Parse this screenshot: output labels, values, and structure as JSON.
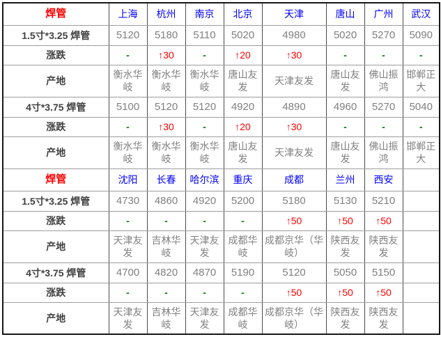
{
  "table": {
    "product_name": "焊管",
    "row_labels": {
      "size1": "1.5寸*3.25 焊管",
      "change": "涨跌",
      "origin": "产地",
      "size2": "4寸*3.75 焊管"
    },
    "sections": [
      {
        "corner_label": "焊管",
        "cities": [
          "上海",
          "杭州",
          "南京",
          "北京",
          "天津",
          "唐山",
          "广州",
          "武汉"
        ],
        "rows": [
          {
            "label": "1.5寸*3.25 焊管",
            "type": "price",
            "values": [
              "5120",
              "5180",
              "5110",
              "5020",
              "4980",
              "5020",
              "5270",
              "5090"
            ]
          },
          {
            "label": "涨跌",
            "type": "change",
            "values": [
              "-",
              "↑30",
              "-",
              "↑20",
              "↑30",
              "-",
              "-",
              "-"
            ]
          },
          {
            "label": "产地",
            "type": "producer",
            "values": [
              "衡水华岐",
              "衡水华岐",
              "衡水华岐",
              "唐山友发",
              "天津友发",
              "唐山友发",
              "佛山振鸿",
              "邯郸正大"
            ]
          },
          {
            "label": "4寸*3.75 焊管",
            "type": "price",
            "values": [
              "5100",
              "5120",
              "5120",
              "4920",
              "4890",
              "4960",
              "5270",
              "5040"
            ]
          },
          {
            "label": "涨跌",
            "type": "change",
            "values": [
              "-",
              "↑30",
              "-",
              "↑20",
              "↑30",
              "-",
              "-",
              "-"
            ]
          },
          {
            "label": "产地",
            "type": "producer",
            "values": [
              "衡水华岐",
              "衡水华岐",
              "衡水华岐",
              "唐山友发",
              "天津友发",
              "唐山友发",
              "佛山振鸿",
              "邯郸正大"
            ]
          }
        ]
      },
      {
        "corner_label": "焊管",
        "cities": [
          "沈阳",
          "长春",
          "哈尔滨",
          "重庆",
          "成都",
          "兰州",
          "西安",
          ""
        ],
        "rows": [
          {
            "label": "1.5寸*3.25 焊管",
            "type": "price",
            "values": [
              "4730",
              "4860",
              "4920",
              "5200",
              "5180",
              "5130",
              "5210",
              ""
            ]
          },
          {
            "label": "涨跌",
            "type": "change",
            "values": [
              "-",
              "-",
              "-",
              "-",
              "↑50",
              "↑50",
              "↑50",
              ""
            ]
          },
          {
            "label": "产地",
            "type": "producer",
            "values": [
              "天津友发",
              "吉林华岐",
              "天津友发",
              "成都华岐",
              "成都京华（华岐）",
              "陕西友发",
              "陕西友发",
              ""
            ]
          },
          {
            "label": "4寸*3.75 焊管",
            "type": "price",
            "values": [
              "4700",
              "4820",
              "4870",
              "5190",
              "5120",
              "5050",
              "5150",
              ""
            ]
          },
          {
            "label": "涨跌",
            "type": "change",
            "values": [
              "-",
              "-",
              "-",
              "-",
              "↑50",
              "↑50",
              "↑50",
              ""
            ]
          },
          {
            "label": "产地",
            "type": "producer",
            "values": [
              "天津友发",
              "吉林华岐",
              "天津友发",
              "成都华岐",
              "成都京华（华岐）",
              "陕西友发",
              "陕西友发",
              ""
            ]
          }
        ]
      }
    ],
    "symbols": {
      "up_arrow": "↑",
      "no_change": "-"
    },
    "colors": {
      "header_red": "#ff0000",
      "city_blue": "#0000ff",
      "up_red": "#ff0000",
      "flat_green": "#008000",
      "value_gray": "#808080",
      "label_dark": "#404040",
      "outer_border": "#161616",
      "inner_border_vertical": "#4a4a4a",
      "inner_border_horizontal": "#9c9c9c"
    }
  }
}
